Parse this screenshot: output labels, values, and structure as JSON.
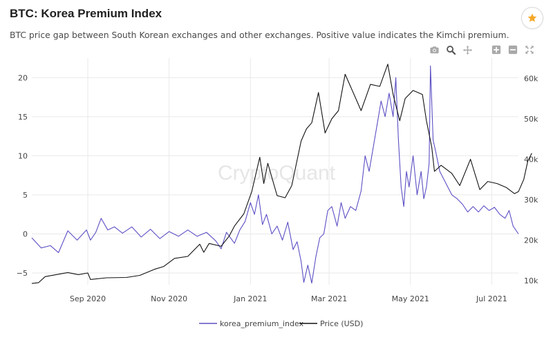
{
  "header": {
    "title": "BTC: Korea Premium Index",
    "subtitle": "BTC price gap between South Korean exchanges and other exchanges. Positive value indicates the Kimchi premium."
  },
  "toolbar": {
    "icons": [
      "camera-icon",
      "zoom-icon",
      "pan-icon",
      "zoom-in-icon",
      "zoom-out-icon",
      "autoscale-icon"
    ]
  },
  "watermark": "CryptoQuant",
  "colors": {
    "premium": "#5b4fc4",
    "price": "#111111",
    "grid": "#e9e9e9",
    "star": "#f4a82a"
  },
  "chart_data": {
    "type": "line",
    "x_range": [
      "2020-07-21",
      "2021-07-21"
    ],
    "x_ticks": [
      {
        "date": "2020-09-01",
        "label": "Sep 2020"
      },
      {
        "date": "2020-11-01",
        "label": "Nov 2020"
      },
      {
        "date": "2021-01-01",
        "label": "Jan 2021"
      },
      {
        "date": "2021-03-01",
        "label": "Mar 2021"
      },
      {
        "date": "2021-05-01",
        "label": "May 2021"
      },
      {
        "date": "2021-07-01",
        "label": "Jul 2021"
      }
    ],
    "y_left": {
      "range": [
        -6.5,
        22.5
      ],
      "ticks": [
        {
          "v": -5,
          "label": "−5"
        },
        {
          "v": 0,
          "label": "0"
        },
        {
          "v": 5,
          "label": "5"
        },
        {
          "v": 10,
          "label": "10"
        },
        {
          "v": 15,
          "label": "15"
        },
        {
          "v": 20,
          "label": "20"
        }
      ]
    },
    "y_right": {
      "range": [
        9000,
        65000
      ],
      "ticks": [
        {
          "v": 10000,
          "label": "10k"
        },
        {
          "v": 20000,
          "label": "20k"
        },
        {
          "v": 30000,
          "label": "30k"
        },
        {
          "v": 40000,
          "label": "40k"
        },
        {
          "v": 50000,
          "label": "50k"
        },
        {
          "v": 60000,
          "label": "60k"
        }
      ]
    },
    "grid": true,
    "legend_position": "bottom-center",
    "series": [
      {
        "name": "korea_premium_index",
        "axis": "left",
        "points": [
          [
            "2020-07-21",
            -0.5
          ],
          [
            "2020-07-28",
            -1.8
          ],
          [
            "2020-08-04",
            -1.5
          ],
          [
            "2020-08-10",
            -2.4
          ],
          [
            "2020-08-17",
            0.4
          ],
          [
            "2020-08-24",
            -0.8
          ],
          [
            "2020-08-31",
            0.5
          ],
          [
            "2020-09-03",
            -0.8
          ],
          [
            "2020-09-07",
            0.2
          ],
          [
            "2020-09-11",
            2.0
          ],
          [
            "2020-09-16",
            0.5
          ],
          [
            "2020-09-21",
            0.9
          ],
          [
            "2020-09-27",
            0.1
          ],
          [
            "2020-10-04",
            0.9
          ],
          [
            "2020-10-11",
            -0.4
          ],
          [
            "2020-10-18",
            0.6
          ],
          [
            "2020-10-25",
            -0.6
          ],
          [
            "2020-11-01",
            0.3
          ],
          [
            "2020-11-08",
            -0.3
          ],
          [
            "2020-11-15",
            0.5
          ],
          [
            "2020-11-22",
            -0.3
          ],
          [
            "2020-11-29",
            0.2
          ],
          [
            "2020-12-06",
            -0.9
          ],
          [
            "2020-12-10",
            -1.9
          ],
          [
            "2020-12-14",
            0.2
          ],
          [
            "2020-12-20",
            -1.2
          ],
          [
            "2020-12-24",
            0.5
          ],
          [
            "2020-12-28",
            1.6
          ],
          [
            "2021-01-01",
            4.0
          ],
          [
            "2021-01-04",
            2.5
          ],
          [
            "2021-01-07",
            5.0
          ],
          [
            "2021-01-10",
            1.2
          ],
          [
            "2021-01-13",
            2.5
          ],
          [
            "2021-01-17",
            0.0
          ],
          [
            "2021-01-21",
            1.0
          ],
          [
            "2021-01-25",
            -0.8
          ],
          [
            "2021-01-29",
            1.5
          ],
          [
            "2021-02-02",
            -2.0
          ],
          [
            "2021-02-05",
            -1.0
          ],
          [
            "2021-02-08",
            -3.5
          ],
          [
            "2021-02-10",
            -6.2
          ],
          [
            "2021-02-13",
            -4.0
          ],
          [
            "2021-02-16",
            -6.3
          ],
          [
            "2021-02-19",
            -3.0
          ],
          [
            "2021-02-22",
            -0.5
          ],
          [
            "2021-02-25",
            0.0
          ],
          [
            "2021-02-28",
            3.0
          ],
          [
            "2021-03-03",
            3.5
          ],
          [
            "2021-03-07",
            1.0
          ],
          [
            "2021-03-10",
            4.0
          ],
          [
            "2021-03-13",
            2.0
          ],
          [
            "2021-03-17",
            3.5
          ],
          [
            "2021-03-21",
            3.0
          ],
          [
            "2021-03-25",
            5.5
          ],
          [
            "2021-03-28",
            10.0
          ],
          [
            "2021-03-31",
            8.0
          ],
          [
            "2021-04-03",
            11.0
          ],
          [
            "2021-04-06",
            14.0
          ],
          [
            "2021-04-09",
            17.0
          ],
          [
            "2021-04-12",
            15.0
          ],
          [
            "2021-04-15",
            18.0
          ],
          [
            "2021-04-18",
            15.0
          ],
          [
            "2021-04-20",
            20.0
          ],
          [
            "2021-04-22",
            12.0
          ],
          [
            "2021-04-24",
            6.0
          ],
          [
            "2021-04-26",
            3.5
          ],
          [
            "2021-04-28",
            8.0
          ],
          [
            "2021-04-30",
            6.0
          ],
          [
            "2021-05-03",
            10.0
          ],
          [
            "2021-05-06",
            5.0
          ],
          [
            "2021-05-09",
            8.0
          ],
          [
            "2021-05-11",
            4.5
          ],
          [
            "2021-05-13",
            6.0
          ],
          [
            "2021-05-15",
            9.0
          ],
          [
            "2021-05-16",
            21.5
          ],
          [
            "2021-05-18",
            12.0
          ],
          [
            "2021-05-20",
            10.5
          ],
          [
            "2021-05-23",
            8.0
          ],
          [
            "2021-05-26",
            7.0
          ],
          [
            "2021-05-29",
            6.0
          ],
          [
            "2021-06-01",
            5.0
          ],
          [
            "2021-06-05",
            4.5
          ],
          [
            "2021-06-09",
            3.8
          ],
          [
            "2021-06-13",
            2.8
          ],
          [
            "2021-06-17",
            3.5
          ],
          [
            "2021-06-21",
            2.8
          ],
          [
            "2021-06-25",
            3.6
          ],
          [
            "2021-06-29",
            3.0
          ],
          [
            "2021-07-03",
            3.4
          ],
          [
            "2021-07-07",
            2.5
          ],
          [
            "2021-07-11",
            2.0
          ],
          [
            "2021-07-14",
            3.0
          ],
          [
            "2021-07-17",
            1.0
          ],
          [
            "2021-07-21",
            0.0
          ]
        ]
      },
      {
        "name": "Price (USD)",
        "axis": "right",
        "points": [
          [
            "2020-07-21",
            9300
          ],
          [
            "2020-07-26",
            9500
          ],
          [
            "2020-07-31",
            11000
          ],
          [
            "2020-08-10",
            11600
          ],
          [
            "2020-08-17",
            12000
          ],
          [
            "2020-08-25",
            11500
          ],
          [
            "2020-09-01",
            11900
          ],
          [
            "2020-09-03",
            10300
          ],
          [
            "2020-09-15",
            10700
          ],
          [
            "2020-09-30",
            10800
          ],
          [
            "2020-10-10",
            11300
          ],
          [
            "2020-10-21",
            12800
          ],
          [
            "2020-10-28",
            13500
          ],
          [
            "2020-11-05",
            15500
          ],
          [
            "2020-11-15",
            16000
          ],
          [
            "2020-11-24",
            19000
          ],
          [
            "2020-11-27",
            17000
          ],
          [
            "2020-12-01",
            19200
          ],
          [
            "2020-12-10",
            18500
          ],
          [
            "2020-12-16",
            21000
          ],
          [
            "2020-12-20",
            23500
          ],
          [
            "2020-12-27",
            26500
          ],
          [
            "2021-01-02",
            32000
          ],
          [
            "2021-01-08",
            40500
          ],
          [
            "2021-01-11",
            34000
          ],
          [
            "2021-01-14",
            39000
          ],
          [
            "2021-01-21",
            31000
          ],
          [
            "2021-01-27",
            30500
          ],
          [
            "2021-02-01",
            33500
          ],
          [
            "2021-02-08",
            44500
          ],
          [
            "2021-02-12",
            47500
          ],
          [
            "2021-02-16",
            49000
          ],
          [
            "2021-02-21",
            56500
          ],
          [
            "2021-02-26",
            46500
          ],
          [
            "2021-03-03",
            50000
          ],
          [
            "2021-03-08",
            52000
          ],
          [
            "2021-03-13",
            61000
          ],
          [
            "2021-03-17",
            58000
          ],
          [
            "2021-03-25",
            52000
          ],
          [
            "2021-04-01",
            58500
          ],
          [
            "2021-04-08",
            58000
          ],
          [
            "2021-04-14",
            63500
          ],
          [
            "2021-04-18",
            56000
          ],
          [
            "2021-04-23",
            49500
          ],
          [
            "2021-04-27",
            55000
          ],
          [
            "2021-05-03",
            57000
          ],
          [
            "2021-05-10",
            56000
          ],
          [
            "2021-05-13",
            49500
          ],
          [
            "2021-05-17",
            43000
          ],
          [
            "2021-05-19",
            37000
          ],
          [
            "2021-05-24",
            38500
          ],
          [
            "2021-06-01",
            36500
          ],
          [
            "2021-06-07",
            33500
          ],
          [
            "2021-06-15",
            40000
          ],
          [
            "2021-06-22",
            32500
          ],
          [
            "2021-06-28",
            34500
          ],
          [
            "2021-07-05",
            34000
          ],
          [
            "2021-07-12",
            33000
          ],
          [
            "2021-07-18",
            31500
          ],
          [
            "2021-07-21",
            32000
          ],
          [
            "2021-07-25",
            35000
          ],
          [
            "2021-07-28",
            39500
          ],
          [
            "2021-07-31",
            41500
          ]
        ]
      }
    ]
  }
}
